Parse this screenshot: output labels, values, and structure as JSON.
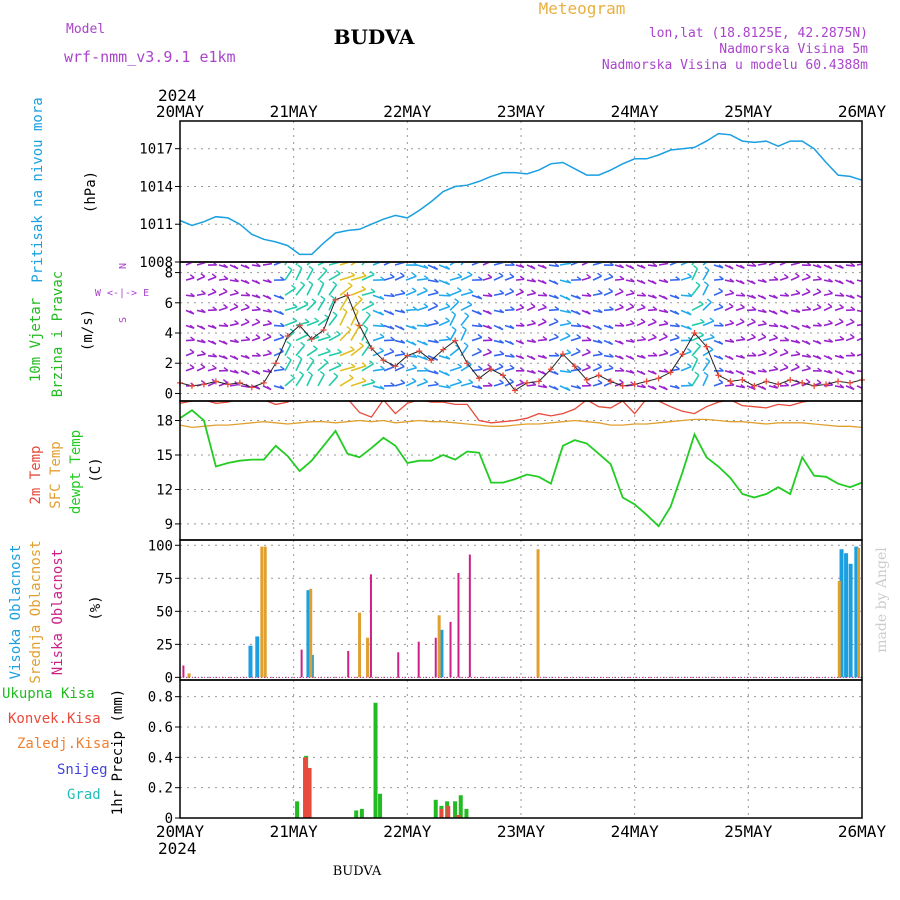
{
  "header": {
    "model_label": "Model",
    "model_name": "wrf-nmm_v3.9.1  e1km",
    "station": "BUDVA",
    "title": "Meteogram",
    "lonlat": "lon,lat (18.8125E, 42.2875N)",
    "elevation": "Nadmorska Visina 5m",
    "model_elevation": "Nadmorska Visina u modelu 60.4388m",
    "year_top": "2024",
    "year_bottom": "2024",
    "footer_station": "BUDVA",
    "watermark": "made by Angel"
  },
  "colors": {
    "pressure": "#1a9fe0",
    "temp2m": "#e84a3c",
    "sfc": "#e0a030",
    "dewpt": "#22cc22",
    "cloud_high": "#1a9fe0",
    "cloud_mid": "#e0a030",
    "cloud_low": "#cc2288",
    "precip_total": "#22bb22",
    "precip_conv": "#e84a3c",
    "precip_frz": "#f08030",
    "snow": "#4444dd",
    "graupel": "#22bbbb",
    "wind_speed": "#e84a3c",
    "axis_label_purple": "#aa44cc"
  },
  "axes_labels": {
    "pressure": [
      "Pritisak na nivou mora",
      "(hPa)"
    ],
    "wind": [
      "10m Vjetar",
      "Brzina i Pravac",
      "(m/s)"
    ],
    "wind_compass": [
      "N",
      "^",
      "|",
      "W  <-|->  E",
      "|",
      "v",
      "S"
    ],
    "temp": [
      "2m Temp",
      "SFC Temp",
      "dewpt Temp",
      "(C)"
    ],
    "cloud": [
      "Visoka Oblacnost",
      "Srednja Oblacnost",
      "Niska Oblacnost",
      "(%)"
    ],
    "precip_legend": [
      "Ukupna Kisa",
      "Konvek.Kisa",
      "Zaledj.Kisa",
      "Snijeg",
      "Grad"
    ],
    "precip_unit": "1hr Precip (mm)"
  },
  "chart_data": [
    {
      "type": "line",
      "name": "pressure",
      "x_labels": [
        "20MAY",
        "21MAY",
        "22MAY",
        "23MAY",
        "24MAY",
        "25MAY",
        "26MAY"
      ],
      "y_ticks": [
        1008,
        1011,
        1014,
        1017
      ],
      "ylim": [
        1008,
        1019.2
      ],
      "values": [
        1011.3,
        1010.9,
        1011.2,
        1011.6,
        1011.5,
        1011.0,
        1010.2,
        1009.8,
        1009.6,
        1009.3,
        1008.6,
        1008.6,
        1009.5,
        1010.3,
        1010.5,
        1010.6,
        1011.0,
        1011.4,
        1011.7,
        1011.5,
        1012.1,
        1012.8,
        1013.6,
        1014.0,
        1014.1,
        1014.4,
        1014.8,
        1015.1,
        1015.1,
        1015.0,
        1015.3,
        1015.8,
        1015.9,
        1015.4,
        1014.9,
        1014.9,
        1015.3,
        1015.8,
        1016.2,
        1016.2,
        1016.5,
        1016.9,
        1017.0,
        1017.1,
        1017.6,
        1018.2,
        1018.1,
        1017.6,
        1017.5,
        1017.6,
        1017.2,
        1017.6,
        1017.6,
        1017.0,
        1015.9,
        1014.9,
        1014.8,
        1014.5
      ],
      "grid": true
    },
    {
      "type": "line",
      "name": "wind",
      "y_ticks": [
        0,
        2,
        4,
        6,
        8
      ],
      "ylim": [
        -0.5,
        8.7
      ],
      "speed_values": [
        0.7,
        0.5,
        0.6,
        0.8,
        0.6,
        0.7,
        0.4,
        0.7,
        2.0,
        3.8,
        4.5,
        3.6,
        4.2,
        6.2,
        6.5,
        4.5,
        3.0,
        2.2,
        1.8,
        2.5,
        2.8,
        2.2,
        2.9,
        3.5,
        2.0,
        1.0,
        1.6,
        1.2,
        0.2,
        0.7,
        0.8,
        1.6,
        2.6,
        1.8,
        0.9,
        1.2,
        0.8,
        0.5,
        0.6,
        0.8,
        1.0,
        1.4,
        2.6,
        4.0,
        3.1,
        1.2,
        0.8,
        0.9,
        0.5,
        0.8,
        0.6,
        0.9,
        0.7,
        0.5,
        0.6,
        0.8,
        0.7,
        0.9
      ],
      "arrow_rows": [
        0.5,
        1.5,
        2.5,
        3.5,
        4.5,
        5.5,
        6.5,
        7.5,
        8.5
      ],
      "grid": true
    },
    {
      "type": "line",
      "name": "temperature",
      "y_ticks": [
        9,
        12,
        15,
        18
      ],
      "ylim": [
        7.6,
        19.7
      ],
      "series": [
        {
          "name": "2m Temp",
          "values": [
            19.5,
            19.7,
            19.8,
            19.5,
            19.6,
            19.9,
            20.0,
            19.8,
            19.4,
            19.6,
            20.2,
            20.3,
            19.9,
            19.8,
            19.9,
            18.7,
            18.3,
            19.8,
            18.6,
            19.5,
            19.8,
            19.6,
            19.6,
            19.4,
            19.4,
            18.0,
            17.8,
            17.9,
            18.0,
            18.2,
            18.6,
            18.4,
            18.6,
            19.0,
            19.8,
            19.2,
            19.1,
            19.7,
            18.6,
            19.9,
            19.7,
            19.2,
            18.8,
            18.6,
            19.2,
            19.6,
            19.8,
            19.3,
            19.2,
            19.1,
            19.4,
            19.3,
            19.6,
            19.8,
            19.7,
            20.0,
            19.9,
            19.8
          ]
        },
        {
          "name": "SFC Temp",
          "values": [
            17.6,
            17.4,
            17.5,
            17.6,
            17.6,
            17.7,
            17.8,
            17.9,
            17.8,
            17.7,
            17.8,
            17.9,
            17.9,
            17.8,
            17.9,
            18.0,
            17.9,
            18.0,
            17.8,
            17.9,
            18.0,
            17.9,
            17.9,
            17.8,
            17.7,
            17.6,
            17.5,
            17.5,
            17.6,
            17.7,
            17.7,
            17.8,
            17.9,
            18.0,
            17.9,
            17.8,
            17.6,
            17.6,
            17.7,
            17.7,
            17.8,
            17.9,
            18.0,
            18.1,
            18.1,
            18.0,
            17.9,
            17.9,
            17.8,
            17.7,
            17.8,
            17.8,
            17.8,
            17.7,
            17.6,
            17.5,
            17.5,
            17.4
          ]
        },
        {
          "name": "dewpt Temp",
          "values": [
            18.2,
            18.9,
            18.0,
            14.0,
            14.3,
            14.5,
            14.6,
            14.6,
            15.8,
            14.9,
            13.6,
            14.5,
            15.8,
            17.1,
            15.1,
            14.8,
            15.6,
            16.5,
            15.8,
            14.3,
            14.5,
            14.5,
            15.0,
            14.6,
            15.3,
            15.2,
            12.6,
            12.6,
            12.9,
            13.3,
            13.1,
            12.5,
            15.8,
            16.3,
            16.0,
            15.1,
            14.2,
            11.3,
            10.7,
            9.8,
            8.8,
            10.5,
            13.5,
            16.8,
            14.8,
            14.0,
            13.0,
            11.6,
            11.3,
            11.6,
            12.2,
            11.6,
            14.8,
            13.2,
            13.1,
            12.5,
            12.2,
            12.6
          ]
        }
      ],
      "grid": true
    },
    {
      "type": "bar",
      "name": "cloud_cover",
      "y_ticks": [
        0,
        25,
        50,
        75,
        100
      ],
      "ylim": [
        -2,
        104
      ],
      "series": [
        {
          "name": "Visoka Oblacnost",
          "bars": [
            [
              0.62,
              24
            ],
            [
              0.68,
              31
            ],
            [
              1.13,
              66
            ],
            [
              1.16,
              17
            ],
            [
              2.3,
              36
            ],
            [
              5.82,
              97
            ],
            [
              5.86,
              94
            ],
            [
              5.9,
              86
            ],
            [
              5.95,
              99
            ]
          ]
        },
        {
          "name": "Srednja Oblacnost",
          "bars": [
            [
              0.08,
              3
            ],
            [
              0.72,
              99
            ],
            [
              0.75,
              99
            ],
            [
              1.15,
              67
            ],
            [
              1.58,
              49
            ],
            [
              1.65,
              30
            ],
            [
              2.28,
              47
            ],
            [
              3.15,
              97
            ],
            [
              5.8,
              73
            ],
            [
              5.97,
              98
            ]
          ]
        },
        {
          "name": "Niska Oblacnost",
          "bars": [
            [
              0.03,
              9
            ],
            [
              1.07,
              21
            ],
            [
              1.48,
              20
            ],
            [
              1.68,
              78
            ],
            [
              1.92,
              19
            ],
            [
              2.1,
              27
            ],
            [
              2.25,
              30
            ],
            [
              2.38,
              42
            ],
            [
              2.45,
              79
            ],
            [
              2.55,
              93
            ]
          ]
        }
      ],
      "grid": true
    },
    {
      "type": "bar",
      "name": "precipitation",
      "y_ticks": [
        0,
        0.2,
        0.4,
        0.6,
        0.8
      ],
      "ylim": [
        0,
        0.91
      ],
      "series": [
        {
          "name": "Ukupna Kisa",
          "bars": [
            [
              1.03,
              0.11
            ],
            [
              1.11,
              0.41
            ],
            [
              1.55,
              0.05
            ],
            [
              1.6,
              0.06
            ],
            [
              1.72,
              0.76
            ],
            [
              1.76,
              0.16
            ],
            [
              2.25,
              0.12
            ],
            [
              2.3,
              0.08
            ],
            [
              2.35,
              0.11
            ],
            [
              2.42,
              0.11
            ],
            [
              2.47,
              0.15
            ],
            [
              2.52,
              0.06
            ]
          ]
        },
        {
          "name": "Konvek.Kisa",
          "bars": [
            [
              1.1,
              0.4
            ],
            [
              1.14,
              0.33
            ],
            [
              2.3,
              0.06
            ],
            [
              2.36,
              0.08
            ],
            [
              2.45,
              0.02
            ]
          ]
        }
      ],
      "grid": true
    }
  ]
}
